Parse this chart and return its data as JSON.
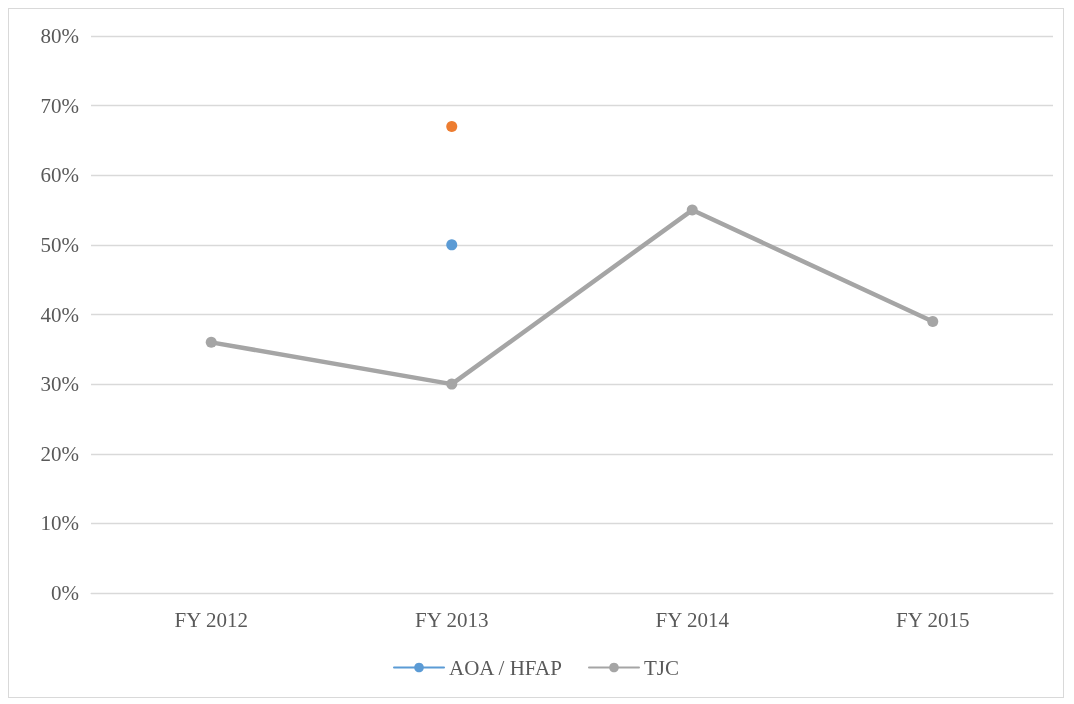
{
  "chart_data": {
    "type": "line",
    "categories": [
      "FY 2012",
      "FY 2013",
      "FY 2014",
      "FY 2015"
    ],
    "series": [
      {
        "name": "AOA / HFAP",
        "color": "#5b9bd5",
        "values": [
          null,
          50,
          null,
          null
        ]
      },
      {
        "color": "#ed7d31",
        "values": [
          null,
          67,
          null,
          null
        ]
      },
      {
        "name": "TJC",
        "color": "#a5a5a5",
        "values": [
          36,
          30,
          55,
          39
        ]
      }
    ],
    "ylim": [
      0,
      80
    ],
    "yticks": [
      {
        "value": 0,
        "label": "0%"
      },
      {
        "value": 10,
        "label": "10%"
      },
      {
        "value": 20,
        "label": "20%"
      },
      {
        "value": 30,
        "label": "30%"
      },
      {
        "value": 40,
        "label": "40%"
      },
      {
        "value": 50,
        "label": "50%"
      },
      {
        "value": 60,
        "label": "60%"
      },
      {
        "value": 70,
        "label": "70%"
      },
      {
        "value": 80,
        "label": "80%"
      }
    ],
    "grid": "y",
    "legend": "bottom",
    "marker": "circle",
    "line_style": "solid"
  }
}
